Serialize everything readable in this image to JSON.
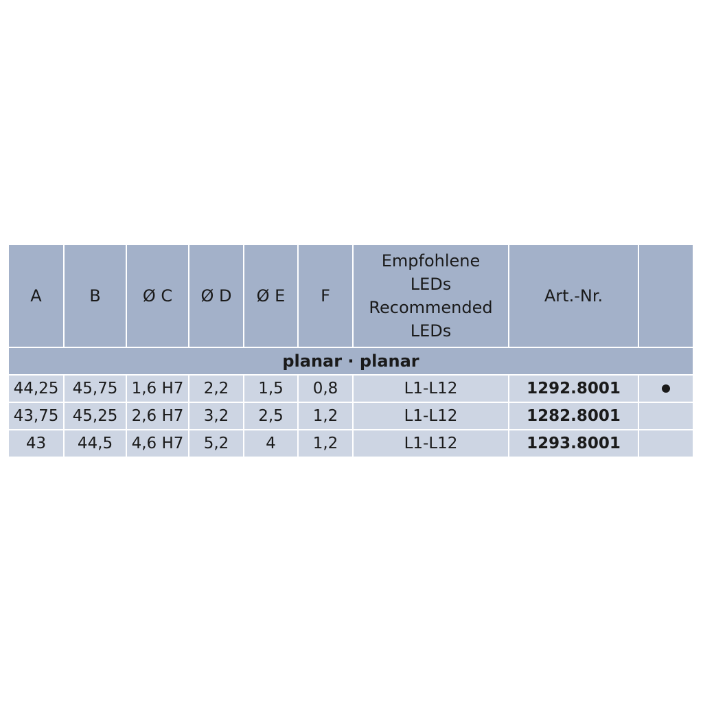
{
  "table": {
    "headers": [
      "A",
      "B",
      "Ø C",
      "Ø D",
      "Ø E",
      "F",
      "Empfohlene LEDs Recommended LEDs",
      "Art.-Nr.",
      ""
    ],
    "group_label": "planar · planar",
    "rows": [
      {
        "cells": [
          "44,25",
          "45,75",
          "1,6 H7",
          "2,2",
          "1,5",
          "0,8",
          "L1-L12",
          "1292.8001"
        ],
        "marked": true
      },
      {
        "cells": [
          "43,75",
          "45,25",
          "2,6 H7",
          "3,2",
          "2,5",
          "1,2",
          "L1-L12",
          "1282.8001"
        ],
        "marked": false
      },
      {
        "cells": [
          "43",
          "44,5",
          "4,6 H7",
          "5,2",
          "4",
          "1,2",
          "L1-L12",
          "1293.8001"
        ],
        "marked": false
      }
    ]
  },
  "colors": {
    "header_bg": "#a3b1c9",
    "row_bg": "#cdd5e3"
  },
  "icons": {
    "marker": "bullet-dot"
  }
}
